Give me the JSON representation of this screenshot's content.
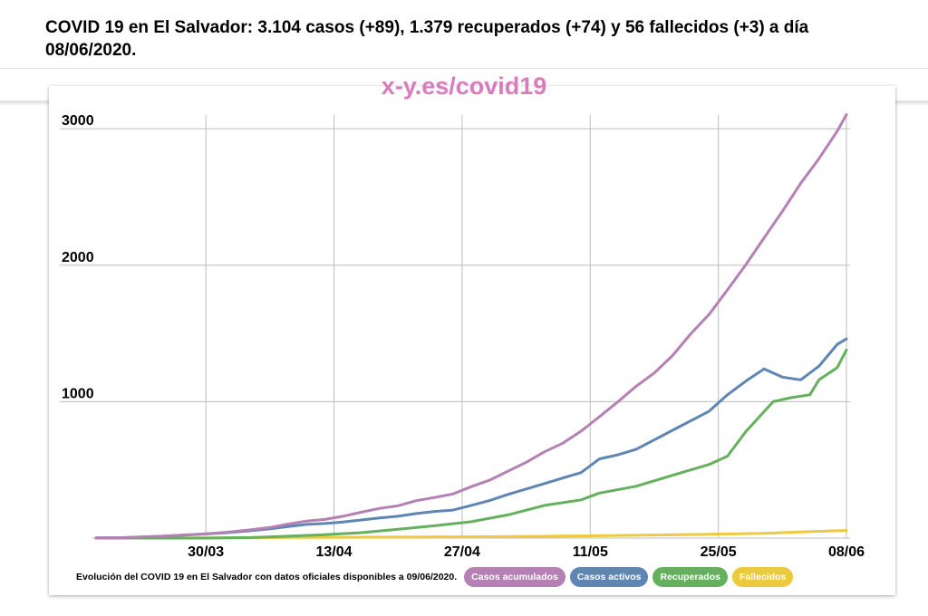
{
  "header": {
    "title": "COVID 19 en El Salvador: 3.104 casos (+89), 1.379 recuperados (+74) y 56 fallecidos (+3) a día 08/06/2020.",
    "watermark": "x-y.es/covid19"
  },
  "footer": {
    "note": "Evolución del COVID 19 en El Salvador con datos oficiales disponibles a 09/06/2020."
  },
  "chart_data": {
    "type": "line",
    "x_start": "2020-03-18",
    "x_end": "2020-06-08",
    "xticks": [
      {
        "date": "2020-03-30",
        "label": "30/03"
      },
      {
        "date": "2020-04-13",
        "label": "13/04"
      },
      {
        "date": "2020-04-27",
        "label": "27/04"
      },
      {
        "date": "2020-05-11",
        "label": "11/05"
      },
      {
        "date": "2020-05-25",
        "label": "25/05"
      },
      {
        "date": "2020-06-08",
        "label": "08/06"
      }
    ],
    "yticks": [
      1000,
      2000,
      3000
    ],
    "ylim": [
      0,
      3200
    ],
    "grid": true,
    "legend_position": "bottom-right",
    "series": [
      {
        "name": "Casos acumulados",
        "color": "#b580b4",
        "points": [
          [
            "2020-03-18",
            1
          ],
          [
            "2020-03-21",
            3
          ],
          [
            "2020-03-25",
            13
          ],
          [
            "2020-03-28",
            24
          ],
          [
            "2020-03-30",
            32
          ],
          [
            "2020-04-01",
            41
          ],
          [
            "2020-04-04",
            62
          ],
          [
            "2020-04-06",
            78
          ],
          [
            "2020-04-08",
            103
          ],
          [
            "2020-04-10",
            125
          ],
          [
            "2020-04-12",
            137
          ],
          [
            "2020-04-14",
            160
          ],
          [
            "2020-04-16",
            190
          ],
          [
            "2020-04-18",
            218
          ],
          [
            "2020-04-20",
            237
          ],
          [
            "2020-04-22",
            274
          ],
          [
            "2020-04-24",
            298
          ],
          [
            "2020-04-26",
            323
          ],
          [
            "2020-04-28",
            377
          ],
          [
            "2020-04-30",
            424
          ],
          [
            "2020-05-02",
            490
          ],
          [
            "2020-05-04",
            555
          ],
          [
            "2020-05-06",
            633
          ],
          [
            "2020-05-08",
            695
          ],
          [
            "2020-05-10",
            784
          ],
          [
            "2020-05-12",
            889
          ],
          [
            "2020-05-14",
            998
          ],
          [
            "2020-05-16",
            1112
          ],
          [
            "2020-05-18",
            1210
          ],
          [
            "2020-05-20",
            1338
          ],
          [
            "2020-05-22",
            1498
          ],
          [
            "2020-05-24",
            1640
          ],
          [
            "2020-05-26",
            1819
          ],
          [
            "2020-05-28",
            2002
          ],
          [
            "2020-05-30",
            2200
          ],
          [
            "2020-06-01",
            2395
          ],
          [
            "2020-06-03",
            2600
          ],
          [
            "2020-06-05",
            2781
          ],
          [
            "2020-06-07",
            2983
          ],
          [
            "2020-06-08",
            3104
          ]
        ]
      },
      {
        "name": "Casos activos",
        "color": "#5f86b3",
        "points": [
          [
            "2020-03-18",
            1
          ],
          [
            "2020-03-21",
            3
          ],
          [
            "2020-03-25",
            13
          ],
          [
            "2020-03-28",
            23
          ],
          [
            "2020-03-30",
            30
          ],
          [
            "2020-04-01",
            38
          ],
          [
            "2020-04-04",
            55
          ],
          [
            "2020-04-06",
            68
          ],
          [
            "2020-04-08",
            85
          ],
          [
            "2020-04-10",
            100
          ],
          [
            "2020-04-12",
            107
          ],
          [
            "2020-04-14",
            118
          ],
          [
            "2020-04-16",
            133
          ],
          [
            "2020-04-18",
            148
          ],
          [
            "2020-04-20",
            160
          ],
          [
            "2020-04-22",
            180
          ],
          [
            "2020-04-24",
            195
          ],
          [
            "2020-04-26",
            205
          ],
          [
            "2020-04-28",
            240
          ],
          [
            "2020-04-30",
            275
          ],
          [
            "2020-05-02",
            320
          ],
          [
            "2020-05-04",
            360
          ],
          [
            "2020-05-06",
            400
          ],
          [
            "2020-05-08",
            440
          ],
          [
            "2020-05-10",
            480
          ],
          [
            "2020-05-12",
            580
          ],
          [
            "2020-05-14",
            610
          ],
          [
            "2020-05-16",
            650
          ],
          [
            "2020-05-18",
            720
          ],
          [
            "2020-05-20",
            790
          ],
          [
            "2020-05-22",
            860
          ],
          [
            "2020-05-24",
            930
          ],
          [
            "2020-05-26",
            1050
          ],
          [
            "2020-05-28",
            1150
          ],
          [
            "2020-05-30",
            1240
          ],
          [
            "2020-06-01",
            1180
          ],
          [
            "2020-06-03",
            1160
          ],
          [
            "2020-06-05",
            1260
          ],
          [
            "2020-06-07",
            1420
          ],
          [
            "2020-06-08",
            1460
          ]
        ]
      },
      {
        "name": "Recuperados",
        "color": "#64b05c",
        "points": [
          [
            "2020-03-18",
            0
          ],
          [
            "2020-03-30",
            0
          ],
          [
            "2020-04-04",
            4
          ],
          [
            "2020-04-08",
            14
          ],
          [
            "2020-04-12",
            25
          ],
          [
            "2020-04-16",
            40
          ],
          [
            "2020-04-20",
            65
          ],
          [
            "2020-04-24",
            90
          ],
          [
            "2020-04-28",
            120
          ],
          [
            "2020-05-02",
            170
          ],
          [
            "2020-05-06",
            240
          ],
          [
            "2020-05-10",
            280
          ],
          [
            "2020-05-12",
            330
          ],
          [
            "2020-05-16",
            380
          ],
          [
            "2020-05-20",
            460
          ],
          [
            "2020-05-24",
            540
          ],
          [
            "2020-05-26",
            600
          ],
          [
            "2020-05-28",
            780
          ],
          [
            "2020-05-31",
            1000
          ],
          [
            "2020-06-02",
            1030
          ],
          [
            "2020-06-04",
            1050
          ],
          [
            "2020-06-05",
            1160
          ],
          [
            "2020-06-07",
            1250
          ],
          [
            "2020-06-08",
            1379
          ]
        ]
      },
      {
        "name": "Fallecidos",
        "color": "#ecc93f",
        "points": [
          [
            "2020-03-18",
            0
          ],
          [
            "2020-04-01",
            1
          ],
          [
            "2020-04-10",
            5
          ],
          [
            "2020-04-20",
            7
          ],
          [
            "2020-04-30",
            10
          ],
          [
            "2020-05-10",
            16
          ],
          [
            "2020-05-20",
            24
          ],
          [
            "2020-05-30",
            35
          ],
          [
            "2020-06-05",
            50
          ],
          [
            "2020-06-08",
            56
          ]
        ]
      }
    ]
  }
}
